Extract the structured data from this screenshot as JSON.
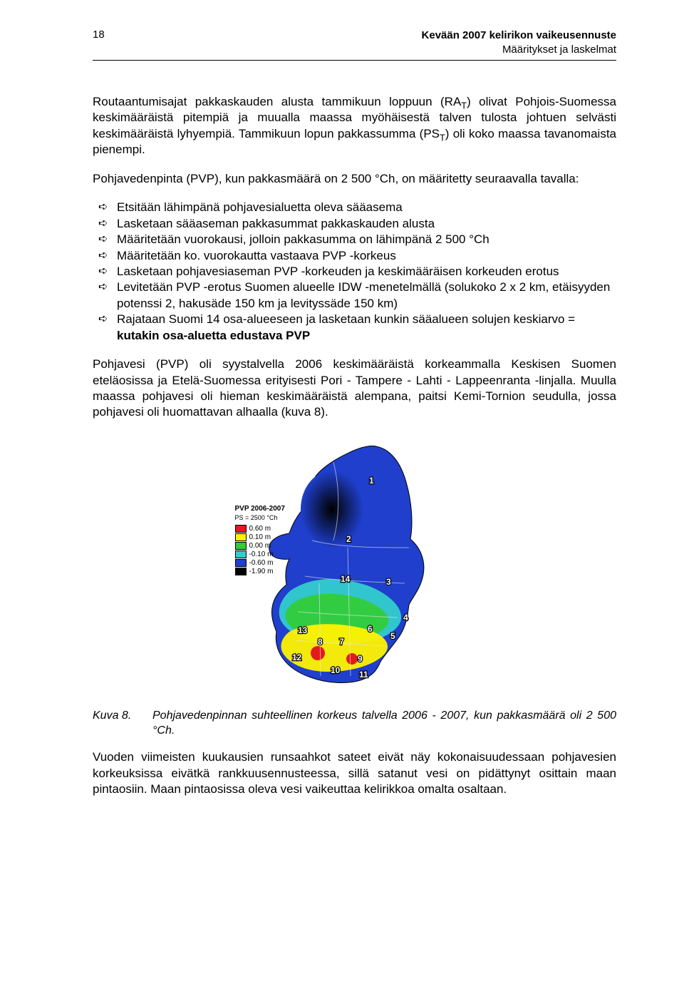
{
  "header": {
    "page_number": "18",
    "title_bold": "Kevään 2007 kelirikon vaikeusennuste",
    "subtitle": "Määritykset ja laskelmat"
  },
  "paragraphs": {
    "p1_html": "Routaantumisajat pakkaskauden alusta tammikuun loppuun (RA<span class=\"sub\">T</span>) olivat Pohjois-Suomessa keskimääräistä pitempiä ja muualla maassa myöhäisestä talven tulosta johtuen selvästi keskimääräistä lyhyempiä. Tammikuun lopun pakkassumma (PS<span class=\"sub\">T</span>) oli koko maassa tavanomaista pienempi.",
    "p2": "Pohjavedenpinta (PVP), kun pakkasmäärä on 2 500 °Ch, on määritetty seuraavalla tavalla:",
    "p3": "Pohjavesi (PVP) oli syystalvella 2006 keskimääräistä korkeammalla Keskisen Suomen eteläosissa ja Etelä-Suomessa erityisesti Pori - Tampere - Lahti - Lappeenranta -linjalla. Muulla maassa pohjavesi oli hieman keskimääräistä alempana, paitsi Kemi-Tornion seudulla, jossa pohjavesi oli huomattavan alhaalla (kuva 8).",
    "p4": "Vuoden viimeisten kuukausien runsaahkot sateet eivät näy kokonaisuudessaan pohjavesien korkeuksissa eivätkä rankkuusennusteessa, sillä satanut vesi on pidättynyt osittain maan pintaosiin. Maan pintaosissa oleva vesi vaikeuttaa kelirikkoa omalta osaltaan."
  },
  "bullets": [
    "Etsitään lähimpänä pohjavesialuetta oleva sääasema",
    "Lasketaan sääaseman pakkasummat pakkaskauden alusta",
    "Määritetään vuorokausi, jolloin pakkasumma on lähimpänä 2 500 °Ch",
    "Määritetään ko. vuorokautta vastaava PVP -korkeus",
    "Lasketaan pohjavesiaseman PVP -korkeuden ja keskimääräisen korkeuden erotus",
    "Levitetään PVP -erotus Suomen alueelle IDW -menetelmällä (solukoko 2 x 2 km, etäisyyden potenssi 2, hakusäde 150 km ja levityssäde 150 km)",
    "Rajataan Suomi 14 osa-alueeseen ja lasketaan kunkin sääalueen solujen keskiarvo = <span class=\"bold\">kutakin osa-aluetta edustava PVP</span>"
  ],
  "figure": {
    "legend_title": "PVP 2006-2007",
    "legend_sub": "PS = 2500 °Ch",
    "legend_items": [
      {
        "color": "#e31a1c",
        "label": "0.60 m"
      },
      {
        "color": "#fff200",
        "label": "0.10 m"
      },
      {
        "color": "#33cc33",
        "label": "0.00 m"
      },
      {
        "color": "#33cccc",
        "label": "-0.10 m"
      },
      {
        "color": "#1f3fcc",
        "label": "-0.60 m"
      },
      {
        "color": "#000000",
        "label": "-1.90 m"
      }
    ],
    "region_labels": [
      "1",
      "2",
      "3",
      "4",
      "5",
      "6",
      "7",
      "8",
      "9",
      "10",
      "11",
      "12",
      "13",
      "14"
    ],
    "background_color": "#ffffff"
  },
  "caption": {
    "label": "Kuva 8.",
    "text": "Pohjavedenpinnan suhteellinen korkeus talvella 2006 - 2007, kun pakkasmäärä oli 2 500 °Ch."
  },
  "colors": {
    "text": "#000000",
    "rule": "#000000",
    "page_bg": "#ffffff"
  },
  "typography": {
    "body_fontsize_pt": 12,
    "caption_fontsize_pt": 11,
    "header_fontsize_pt": 11,
    "font_family": "Arial"
  }
}
